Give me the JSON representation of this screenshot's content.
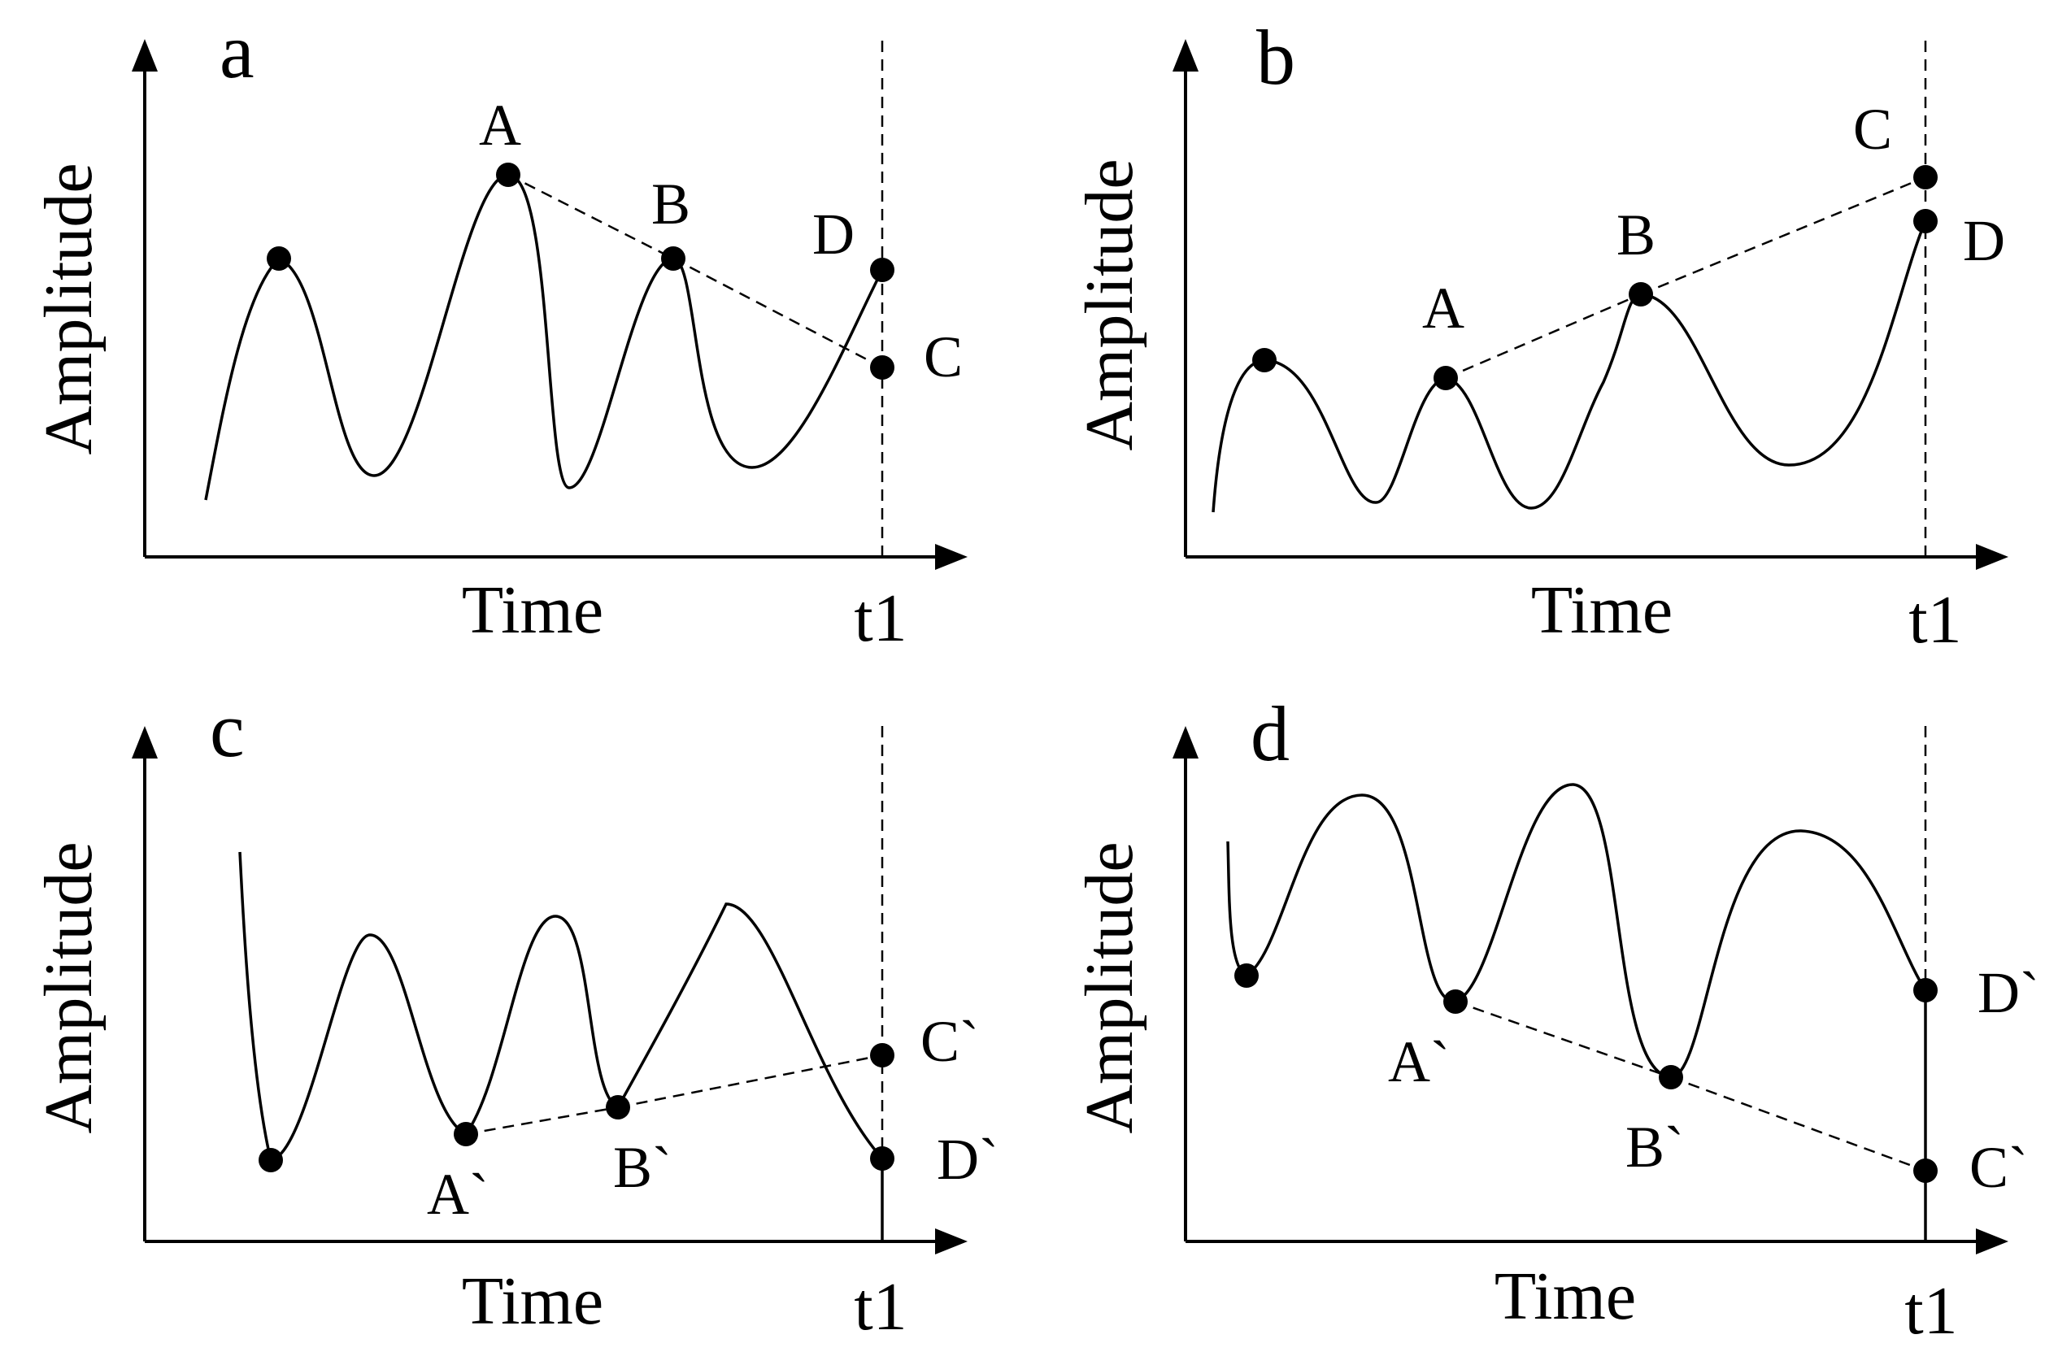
{
  "panels": [
    {
      "id": "a",
      "letter": "a",
      "ylabel": "Amplitude",
      "xlabel": "Time",
      "t_label": "t1",
      "points": [
        {
          "label": "A"
        },
        {
          "label": "B"
        },
        {
          "label": "C"
        },
        {
          "label": "D"
        }
      ]
    },
    {
      "id": "b",
      "letter": "b",
      "ylabel": "Amplitude",
      "xlabel": "Time",
      "t_label": "t1",
      "points": [
        {
          "label": "A"
        },
        {
          "label": "B"
        },
        {
          "label": "C"
        },
        {
          "label": "D"
        }
      ]
    },
    {
      "id": "c",
      "letter": "c",
      "ylabel": "Amplitude",
      "xlabel": "Time",
      "t_label": "t1",
      "points": [
        {
          "label": "A`"
        },
        {
          "label": "B`"
        },
        {
          "label": "C`"
        },
        {
          "label": "D`"
        }
      ]
    },
    {
      "id": "d",
      "letter": "d",
      "ylabel": "Amplitude",
      "xlabel": "Time",
      "t_label": "t1",
      "points": [
        {
          "label": "A`"
        },
        {
          "label": "B`"
        },
        {
          "label": "C`"
        },
        {
          "label": "D`"
        }
      ]
    }
  ]
}
